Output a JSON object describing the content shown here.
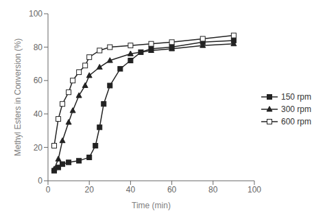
{
  "chart_data": {
    "type": "line",
    "xlabel": "Time (min)",
    "ylabel": "Methyl Esters in Conversion (%)",
    "series": [
      {
        "name": "150 rpm",
        "color": "#222222",
        "marker": "square",
        "x": [
          3,
          5,
          7,
          10,
          15,
          20,
          23,
          25,
          27,
          30,
          35,
          40,
          45,
          50,
          60,
          75,
          90
        ],
        "values": [
          6,
          8,
          10,
          11,
          12,
          14,
          21,
          32,
          46,
          57,
          67,
          72,
          77,
          79,
          80,
          83,
          84
        ]
      },
      {
        "name": "300 rpm",
        "color": "#222222",
        "marker": "triangle",
        "x": [
          3,
          5,
          7,
          10,
          12,
          15,
          18,
          20,
          25,
          30,
          40,
          50,
          60,
          75,
          90
        ],
        "values": [
          7,
          13,
          24,
          35,
          42,
          51,
          57,
          63,
          68,
          72,
          76,
          78,
          79,
          81,
          82
        ]
      },
      {
        "name": "600 rpm",
        "color": "#222222",
        "marker": "square_open",
        "x": [
          3,
          5,
          7,
          10,
          12,
          15,
          18,
          20,
          25,
          30,
          40,
          50,
          60,
          75,
          90
        ],
        "values": [
          21,
          37,
          46,
          53,
          60,
          65,
          69,
          74,
          78,
          80,
          81,
          82,
          83,
          85,
          87
        ]
      }
    ],
    "xlim": [
      0,
      100
    ],
    "ylim": [
      0,
      100
    ],
    "xticks": [
      0,
      20,
      40,
      60,
      80,
      100
    ],
    "yticks": [
      0,
      20,
      40,
      60,
      80,
      100
    ],
    "legend": "right"
  }
}
